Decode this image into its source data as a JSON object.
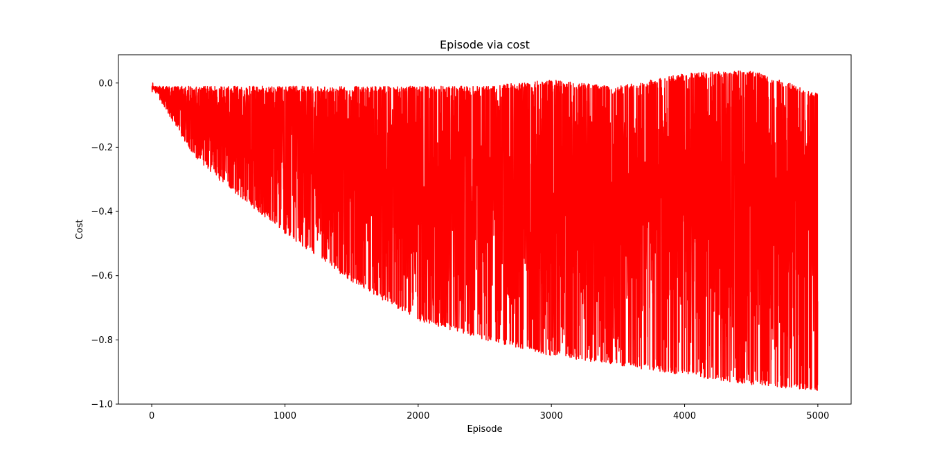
{
  "chart_data": {
    "type": "line",
    "title": "Episode via cost",
    "xlabel": "Episode",
    "ylabel": "Cost",
    "xlim": [
      -250,
      5250
    ],
    "ylim": [
      -1.0,
      0.088
    ],
    "xticks": [
      0,
      1000,
      2000,
      3000,
      4000,
      5000
    ],
    "yticks": [
      0.0,
      -0.2,
      -0.4,
      -0.6,
      -0.8,
      -1.0
    ],
    "xtick_labels": [
      "0",
      "1000",
      "2000",
      "3000",
      "4000",
      "5000"
    ],
    "ytick_labels": [
      "0.0",
      "−0.2",
      "−0.4",
      "−0.6",
      "−0.8",
      "−1.0"
    ],
    "grid": false,
    "series": [
      {
        "color": "#ff0000",
        "n_points": 5000,
        "envelope": {
          "episode": [
            0,
            100,
            300,
            500,
            1000,
            1500,
            2000,
            2500,
            3000,
            3500,
            4000,
            4500,
            5000
          ],
          "max_cost": [
            -0.01,
            -0.01,
            -0.01,
            -0.01,
            -0.01,
            -0.01,
            -0.01,
            -0.01,
            0.01,
            -0.01,
            0.03,
            0.04,
            -0.03
          ],
          "min_cost": [
            -0.01,
            -0.08,
            -0.22,
            -0.3,
            -0.47,
            -0.62,
            -0.74,
            -0.8,
            -0.85,
            -0.88,
            -0.91,
            -0.94,
            -0.96
          ]
        }
      }
    ]
  }
}
